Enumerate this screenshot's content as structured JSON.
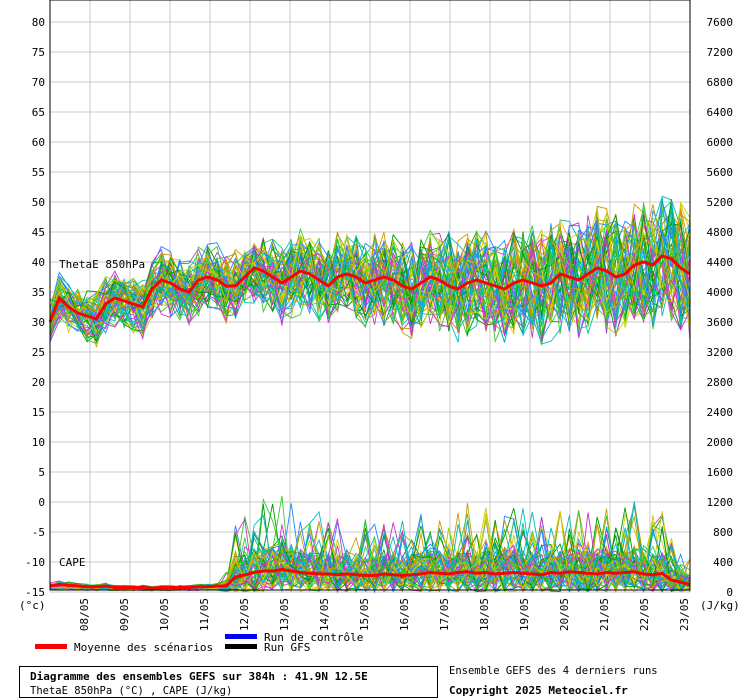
{
  "chart_data": {
    "type": "line",
    "title": "Diagramme des ensembles GEFS sur 384h : 41.9N 12.5E",
    "subtitle": "ThetaE 850hPa (°C) , CAPE (J/kg)",
    "left_axis": {
      "unit": "(°c)",
      "ylim": [
        -15,
        80
      ],
      "ticks": [
        "80",
        "75",
        "70",
        "65",
        "60",
        "55",
        "50",
        "45",
        "40",
        "35",
        "30",
        "25",
        "20",
        "15",
        "10",
        "5",
        "0",
        "-5",
        "-10",
        "-15"
      ]
    },
    "right_axis": {
      "unit": "(J/kg)",
      "ylim": [
        0,
        7600
      ],
      "ticks": [
        "7600",
        "7200",
        "6800",
        "6400",
        "6000",
        "5600",
        "5200",
        "4800",
        "4400",
        "4000",
        "3600",
        "3200",
        "2800",
        "2400",
        "2000",
        "1600",
        "1200",
        "800",
        "400",
        "0"
      ]
    },
    "x_tick_labels": [
      "08/05",
      "09/05",
      "10/05",
      "11/05",
      "12/05",
      "13/05",
      "14/05",
      "15/05",
      "16/05",
      "17/05",
      "18/05",
      "19/05",
      "20/05",
      "21/05",
      "22/05",
      "23/05"
    ],
    "grid": true,
    "annotations": {
      "thetae_label": "ThetaE 850hPa",
      "cape_label": "CAPE"
    },
    "series": [
      {
        "name": "Moyenne des scénarios",
        "color": "#ff0000",
        "x_step_hours": 6,
        "thetae": [
          30,
          34,
          32.5,
          31.5,
          31,
          30.5,
          33,
          34,
          33.5,
          33,
          32.5,
          35.5,
          37,
          36.5,
          35.5,
          35,
          37,
          37.5,
          37,
          36,
          36,
          37.5,
          39,
          38.5,
          37.5,
          36.5,
          37.5,
          38.5,
          38,
          37,
          36,
          37.5,
          38,
          37.5,
          36.5,
          37,
          37.5,
          37,
          36,
          35.5,
          36.5,
          37.5,
          37,
          36,
          35.5,
          36.5,
          37,
          36.5,
          36,
          35.5,
          36.5,
          37,
          36.5,
          36,
          36.5,
          38,
          37.5,
          37,
          38,
          39,
          38.5,
          37.5,
          38,
          39.5,
          40,
          39.5,
          41,
          40.5,
          39,
          38
        ],
        "cape": [
          80,
          100,
          90,
          80,
          70,
          70,
          80,
          60,
          60,
          60,
          60,
          50,
          60,
          60,
          60,
          60,
          70,
          70,
          80,
          80,
          200,
          230,
          260,
          280,
          280,
          300,
          280,
          260,
          250,
          240,
          240,
          230,
          240,
          230,
          220,
          220,
          240,
          230,
          220,
          230,
          240,
          260,
          250,
          240,
          260,
          270,
          250,
          260,
          240,
          250,
          260,
          250,
          240,
          230,
          260,
          250,
          270,
          260,
          250,
          240,
          260,
          250,
          260,
          270,
          240,
          230,
          250,
          160,
          130,
          100
        ]
      }
    ],
    "legend": [
      {
        "label": "Moyenne des scénarios",
        "color": "#ff0000"
      },
      {
        "label": "Run de contrôle",
        "color": "#0000ff"
      },
      {
        "label": "Run GFS",
        "color": "#000000"
      }
    ],
    "ensemble_colors": [
      "#33cc33",
      "#cc33cc",
      "#00bbbb",
      "#cccc00",
      "#2288ff",
      "#009900",
      "#cc9900"
    ]
  },
  "footer": {
    "info_line1": "Ensemble GEFS des 4 derniers runs",
    "info_line2": "Copyright 2025 Meteociel.fr"
  }
}
